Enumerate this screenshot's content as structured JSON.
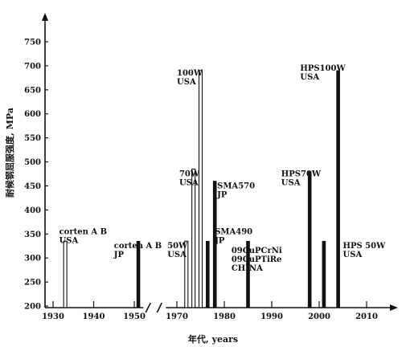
{
  "chart_data": {
    "type": "bar",
    "xlabel": "年代, years",
    "ylabel": "耐候钢屈服强度, MPa",
    "ylim": [
      200,
      780
    ],
    "y_ticks": [
      200,
      250,
      300,
      350,
      400,
      450,
      500,
      550,
      600,
      650,
      700,
      750
    ],
    "x_ticks": [
      1930,
      1940,
      1950,
      1970,
      1980,
      1990,
      2000,
      2010
    ],
    "x_axis_break_between": [
      1950,
      1970
    ],
    "grid": false,
    "legend": "none",
    "series": [
      {
        "values": [
          {
            "x": 1933,
            "y": 335,
            "style": "hollow"
          },
          {
            "x": 1951,
            "y": 335,
            "style": "solid"
          },
          {
            "x": 1972,
            "y": 335,
            "style": "hollow"
          },
          {
            "x": 1973.5,
            "y": 485,
            "style": "hollow"
          },
          {
            "x": 1975,
            "y": 690,
            "style": "hollow"
          },
          {
            "x": 1976.5,
            "y": 335,
            "style": "solid"
          },
          {
            "x": 1978,
            "y": 460,
            "style": "solid"
          },
          {
            "x": 1985,
            "y": 335,
            "style": "solid"
          },
          {
            "x": 1998,
            "y": 480,
            "style": "solid"
          },
          {
            "x": 2001,
            "y": 335,
            "style": "solid"
          },
          {
            "x": 2004,
            "y": 690,
            "style": "solid"
          }
        ]
      }
    ],
    "annotations": [
      {
        "lines": [
          "corten A B",
          "USA"
        ],
        "x": 1931.5,
        "y": 350
      },
      {
        "lines": [
          "corten A B",
          "JP"
        ],
        "x": 1945,
        "y": 320
      },
      {
        "lines": [
          "50W",
          "USA"
        ],
        "x": 1968,
        "y": 320
      },
      {
        "lines": [
          "70W",
          "USA"
        ],
        "x": 1970.5,
        "y": 470
      },
      {
        "lines": [
          "100W",
          "USA"
        ],
        "x": 1970,
        "y": 680
      },
      {
        "lines": [
          "SMA570",
          "JP"
        ],
        "x": 1978.5,
        "y": 445
      },
      {
        "lines": [
          "SMA490",
          "JP"
        ],
        "x": 1978,
        "y": 350
      },
      {
        "lines": [
          "09CuPCrNi",
          "09CuPTiRe",
          "CHINA"
        ],
        "x": 1981.5,
        "y": 310
      },
      {
        "lines": [
          "HPS70W",
          "USA"
        ],
        "x": 1992,
        "y": 470
      },
      {
        "lines": [
          "HPS100W",
          "USA"
        ],
        "x": 1996,
        "y": 690
      },
      {
        "lines": [
          "HPS 50W",
          "USA"
        ],
        "x": 2005,
        "y": 320
      }
    ]
  }
}
